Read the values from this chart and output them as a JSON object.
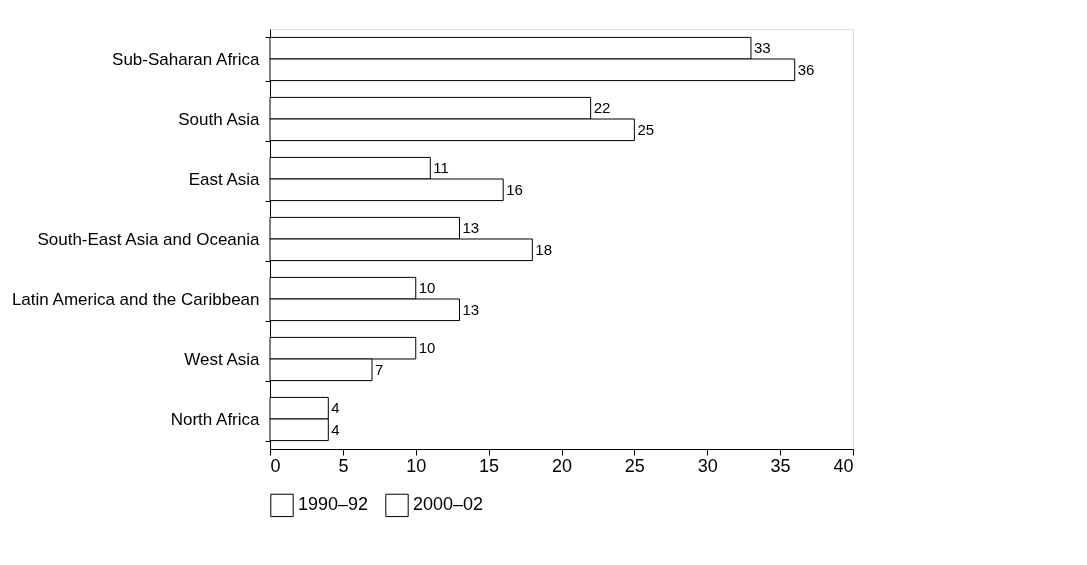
{
  "chart_data": {
    "type": "bar",
    "orientation": "horizontal",
    "categories": [
      "Sub-Saharan Africa",
      "South Asia",
      "East Asia",
      "South-East Asia and Oceania",
      "Latin America and the Caribbean",
      "West Asia",
      "North Africa"
    ],
    "series": [
      {
        "name": "1990–92",
        "color": "#ffffff",
        "values": [
          33,
          22,
          11,
          13,
          10,
          10,
          4
        ]
      },
      {
        "name": "2000–02",
        "color": "#ffffff",
        "values": [
          36,
          25,
          16,
          18,
          13,
          7,
          4
        ]
      }
    ],
    "xlim": [
      0,
      40
    ],
    "xticks": [
      0,
      5,
      10,
      15,
      20,
      25,
      30,
      35,
      40
    ],
    "data_labels": true,
    "legend": "bottom"
  }
}
